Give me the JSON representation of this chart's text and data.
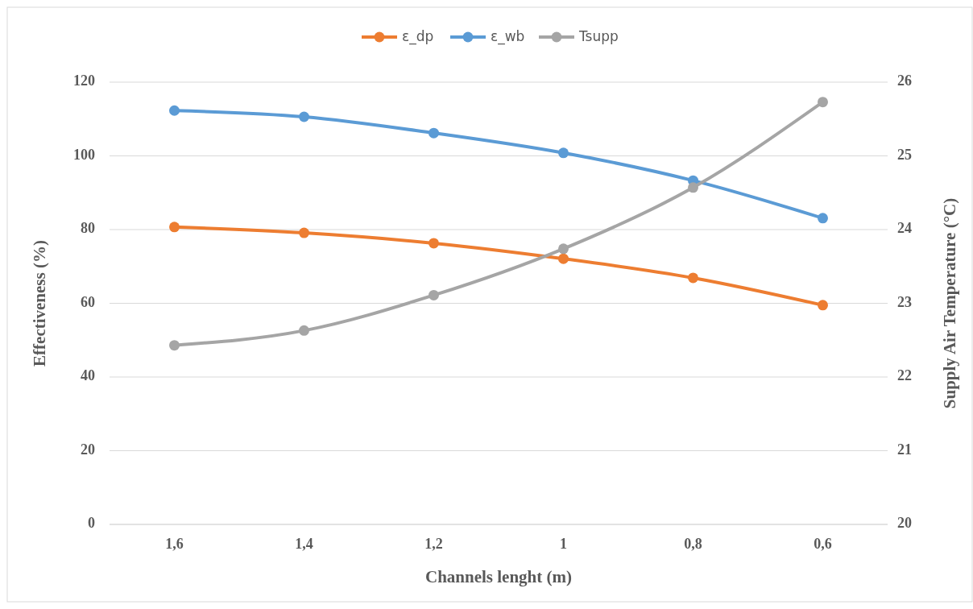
{
  "chart_data": {
    "type": "line",
    "xlabel": "Channels lenght (m)",
    "ylabel": "Effectiveness (%)",
    "y2label": "Supply Air Temperature (°C)",
    "categories": [
      "1,6",
      "1,4",
      "1,2",
      "1",
      "0,8",
      "0,6"
    ],
    "series": [
      {
        "name": "ε_dp",
        "color": "#ed7d31",
        "values": [
          80.7,
          79.1,
          76.3,
          72.1,
          66.9,
          59.5
        ]
      },
      {
        "name": "ε_wb",
        "color": "#5b9bd5",
        "values": [
          112.3,
          110.6,
          106.2,
          100.8,
          93.3,
          83.1
        ]
      },
      {
        "name": "Tsupp",
        "color": "#a5a5a5",
        "axis": "y2",
        "values": [
          22.43,
          22.63,
          23.11,
          23.74,
          24.57,
          25.73
        ]
      }
    ],
    "ylim": [
      0,
      120
    ],
    "yticks": [
      0,
      20,
      40,
      60,
      80,
      100,
      120
    ],
    "y2lim": [
      20,
      26
    ],
    "y2ticks": [
      20,
      21,
      22,
      23,
      24,
      25,
      26
    ],
    "grid": "y",
    "legend": "top",
    "marker": "circle",
    "line_style": "solid"
  }
}
